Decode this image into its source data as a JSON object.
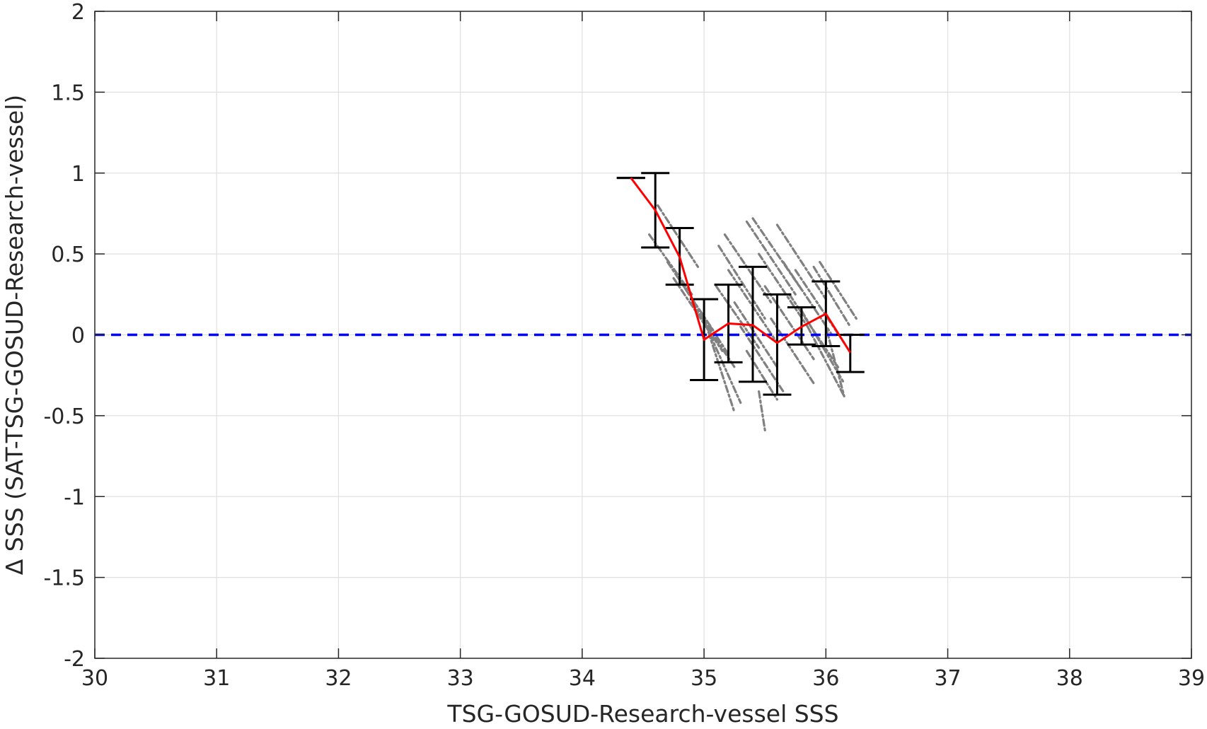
{
  "chart_data": {
    "type": "scatter",
    "title": "",
    "xlabel": "TSG-GOSUD-Research-vessel SSS",
    "ylabel": "Δ SSS (SAT-TSG-GOSUD-Research-vessel)",
    "xlim": [
      30,
      39
    ],
    "ylim": [
      -2,
      2
    ],
    "xticks": [
      30,
      31,
      32,
      33,
      34,
      35,
      36,
      37,
      38,
      39
    ],
    "yticks": [
      -2,
      -1.5,
      -1,
      -0.5,
      0,
      0.5,
      1,
      1.5,
      2
    ],
    "xtick_labels": [
      "30",
      "31",
      "32",
      "33",
      "34",
      "35",
      "36",
      "37",
      "38",
      "39"
    ],
    "ytick_labels": [
      "-2",
      "-1.5",
      "-1",
      "-0.5",
      "0",
      "0.5",
      "1",
      "1.5",
      "2"
    ],
    "grid": true,
    "colors": {
      "scatter": "#808080",
      "mean_line": "#ff0000",
      "errorbars": "#000000",
      "zero_line": "#0000ff",
      "grid": "#e0e0e0",
      "axes": "#262626"
    },
    "reference_line": {
      "y": 0,
      "style": "dashed"
    },
    "mean_line": {
      "x": [
        34.4,
        34.6,
        34.8,
        35.0,
        35.2,
        35.4,
        35.6,
        35.8,
        36.0,
        36.2
      ],
      "y": [
        0.97,
        0.77,
        0.48,
        -0.03,
        0.07,
        0.06,
        -0.05,
        0.05,
        0.13,
        -0.11
      ]
    },
    "errorbars": [
      {
        "x": 34.4,
        "low": 0.97,
        "high": 0.97
      },
      {
        "x": 34.6,
        "low": 0.54,
        "high": 1.0
      },
      {
        "x": 34.8,
        "low": 0.31,
        "high": 0.66
      },
      {
        "x": 35.0,
        "low": -0.28,
        "high": 0.22
      },
      {
        "x": 35.2,
        "low": -0.17,
        "high": 0.31
      },
      {
        "x": 35.4,
        "low": -0.29,
        "high": 0.42
      },
      {
        "x": 35.6,
        "low": -0.37,
        "high": 0.25
      },
      {
        "x": 35.8,
        "low": -0.06,
        "high": 0.17
      },
      {
        "x": 36.0,
        "low": -0.07,
        "high": 0.33
      },
      {
        "x": 36.2,
        "low": -0.23,
        "high": 0.0
      }
    ],
    "scatter_streaks": [
      {
        "x1": 34.62,
        "y1": 0.8,
        "x2": 34.95,
        "y2": 0.42
      },
      {
        "x1": 34.55,
        "y1": 0.62,
        "x2": 34.9,
        "y2": 0.25
      },
      {
        "x1": 34.7,
        "y1": 0.45,
        "x2": 35.1,
        "y2": 0.0
      },
      {
        "x1": 34.75,
        "y1": 0.35,
        "x2": 35.15,
        "y2": -0.1
      },
      {
        "x1": 34.85,
        "y1": 0.28,
        "x2": 35.2,
        "y2": -0.12
      },
      {
        "x1": 34.9,
        "y1": 0.2,
        "x2": 35.25,
        "y2": -0.2
      },
      {
        "x1": 35.0,
        "y1": 0.1,
        "x2": 35.25,
        "y2": -0.48
      },
      {
        "x1": 35.05,
        "y1": 0.0,
        "x2": 35.3,
        "y2": -0.42
      },
      {
        "x1": 35.1,
        "y1": 0.3,
        "x2": 35.45,
        "y2": -0.08
      },
      {
        "x1": 35.12,
        "y1": 0.55,
        "x2": 35.5,
        "y2": 0.1
      },
      {
        "x1": 35.17,
        "y1": 0.62,
        "x2": 35.55,
        "y2": 0.2
      },
      {
        "x1": 35.2,
        "y1": 0.4,
        "x2": 35.6,
        "y2": -0.05
      },
      {
        "x1": 35.25,
        "y1": 0.2,
        "x2": 35.6,
        "y2": -0.2
      },
      {
        "x1": 35.3,
        "y1": 0.05,
        "x2": 35.65,
        "y2": -0.35
      },
      {
        "x1": 35.35,
        "y1": 0.7,
        "x2": 35.75,
        "y2": 0.25
      },
      {
        "x1": 35.4,
        "y1": 0.72,
        "x2": 35.8,
        "y2": 0.28
      },
      {
        "x1": 35.45,
        "y1": 0.5,
        "x2": 35.85,
        "y2": 0.05
      },
      {
        "x1": 35.35,
        "y1": -0.1,
        "x2": 35.6,
        "y2": -0.4
      },
      {
        "x1": 35.45,
        "y1": -0.35,
        "x2": 35.5,
        "y2": -0.59
      },
      {
        "x1": 35.5,
        "y1": 0.3,
        "x2": 35.9,
        "y2": -0.15
      },
      {
        "x1": 35.55,
        "y1": 0.1,
        "x2": 35.9,
        "y2": -0.3
      },
      {
        "x1": 35.6,
        "y1": 0.68,
        "x2": 36.0,
        "y2": 0.22
      },
      {
        "x1": 35.65,
        "y1": 0.45,
        "x2": 36.05,
        "y2": 0.0
      },
      {
        "x1": 35.7,
        "y1": 0.25,
        "x2": 36.1,
        "y2": -0.2
      },
      {
        "x1": 35.75,
        "y1": 0.4,
        "x2": 36.15,
        "y2": -0.05
      },
      {
        "x1": 35.8,
        "y1": 0.15,
        "x2": 36.15,
        "y2": -0.3
      },
      {
        "x1": 35.85,
        "y1": 0.05,
        "x2": 36.15,
        "y2": -0.38
      },
      {
        "x1": 35.9,
        "y1": 0.42,
        "x2": 36.2,
        "y2": 0.05
      },
      {
        "x1": 35.95,
        "y1": 0.45,
        "x2": 36.25,
        "y2": 0.1
      },
      {
        "x1": 36.0,
        "y1": 0.05,
        "x2": 36.15,
        "y2": -0.38
      }
    ]
  }
}
